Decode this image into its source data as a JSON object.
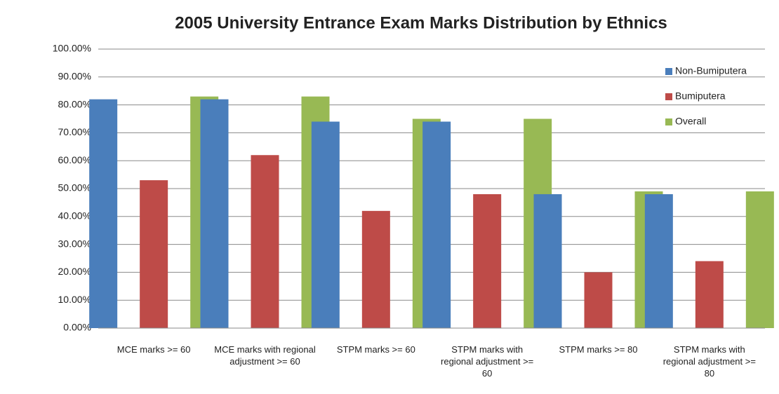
{
  "chart_data": {
    "type": "bar",
    "title": "2005 University Entrance Exam Marks Distribution by Ethnics",
    "categories": [
      "MCE marks >= 60",
      "MCE marks with regional adjustment >= 60",
      "STPM marks >= 60",
      "STPM marks with regional adjustment >= 60",
      "STPM marks >= 80",
      "STPM marks with regional adjustment >= 80"
    ],
    "series": [
      {
        "name": "Non-Bumiputera",
        "color": "#4a7ebb",
        "values": [
          82,
          82,
          74,
          74,
          48,
          48
        ]
      },
      {
        "name": "Bumiputera",
        "color": "#be4b48",
        "values": [
          53,
          62,
          42,
          48,
          20,
          24
        ]
      },
      {
        "name": "Overall",
        "color": "#98b954",
        "values": [
          83,
          83,
          75,
          75,
          49,
          49
        ]
      }
    ],
    "ylim": [
      0,
      100
    ],
    "yticks": [
      {
        "value": 0,
        "label": "0.00%"
      },
      {
        "value": 10,
        "label": "10.00%"
      },
      {
        "value": 20,
        "label": "20.00%"
      },
      {
        "value": 30,
        "label": "30.00%"
      },
      {
        "value": 40,
        "label": "40.00%"
      },
      {
        "value": 50,
        "label": "50.00%"
      },
      {
        "value": 60,
        "label": "60.00%"
      },
      {
        "value": 70,
        "label": "70.00%"
      },
      {
        "value": 80,
        "label": "80.00%"
      },
      {
        "value": 90,
        "label": "90.00%"
      },
      {
        "value": 100,
        "label": "100.00%"
      }
    ],
    "grid": true,
    "legend": "top-right"
  }
}
